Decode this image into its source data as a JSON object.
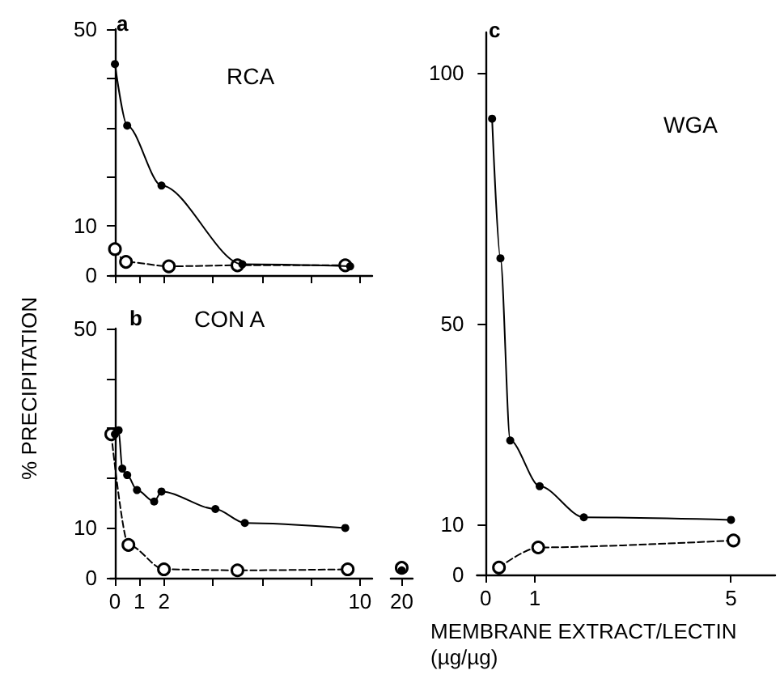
{
  "chart_data": [
    {
      "type": "line",
      "annotations": [
        "a",
        "RCA"
      ],
      "xlim": [
        -0.2,
        10.5
      ],
      "xticks": [
        0,
        1,
        2,
        4,
        6,
        8,
        10
      ],
      "ylim": [
        0,
        50
      ],
      "yticks": [
        0,
        10,
        {
          "value": 20,
          "label": null
        },
        {
          "value": 30,
          "label": null
        },
        {
          "value": 40,
          "label": null
        },
        50
      ],
      "tick_labels": "y",
      "series": [
        {
          "color": "#000000",
          "marker": "circle",
          "line_style": "solid",
          "x": [
            0,
            0.5,
            1.9,
            5.2,
            9.6
          ],
          "values": [
            42.9,
            30.4,
            18.2,
            2.2,
            1.8
          ]
        },
        {
          "color": "#000000",
          "marker": "circle",
          "line_style": "dashed",
          "x": [
            0,
            0.45,
            2.2,
            5,
            9.4
          ],
          "values": [
            5.3,
            2.7,
            1.8,
            2,
            2
          ]
        }
      ]
    },
    {
      "type": "line",
      "annotations": [
        "b",
        "CON A"
      ],
      "ylabel": "% PRECIPITATION",
      "xlim": [
        -0.2,
        10.5
      ],
      "xticks": [
        0,
        1,
        2,
        {
          "value": 4,
          "label": null
        },
        {
          "value": 6,
          "label": null
        },
        {
          "value": 8,
          "label": null
        },
        10
      ],
      "ylim": [
        0,
        50
      ],
      "yticks": [
        0,
        10,
        {
          "value": 20,
          "label": null
        },
        {
          "value": 30,
          "label": null
        },
        {
          "value": 40,
          "label": null
        },
        50
      ],
      "series": [
        {
          "color": "#000000",
          "marker": "circle",
          "line_style": "solid",
          "x": [
            0,
            0.15,
            0.3,
            0.5,
            0.9,
            1.6,
            1.9,
            4.1,
            5.3,
            9.4
          ],
          "values": [
            28.8,
            29.6,
            21.9,
            20.6,
            17.6,
            15.3,
            17.3,
            13.8,
            11,
            10
          ]
        },
        {
          "color": "#000000",
          "marker": "circle",
          "line_style": "dashed",
          "x": [
            -0.15,
            0.55,
            2,
            5,
            9.5
          ],
          "values": [
            28.8,
            6.6,
            1.7,
            1.5,
            1.7
          ]
        }
      ]
    },
    {
      "type": "line",
      "categories": [
        "20"
      ],
      "ylim": [
        0,
        50
      ],
      "tick_labels": "x",
      "series": [
        {
          "color": "#000000",
          "marker": "circle",
          "line_style": "solid",
          "values": [
            1.5
          ]
        },
        {
          "color": "#000000",
          "marker": "circle",
          "line_style": "dashed",
          "values": [
            2
          ]
        }
      ]
    },
    {
      "type": "line",
      "annotations": [
        "c",
        "WGA"
      ],
      "xlabel": "MEMBRANE EXTRACT/LECTIN (µg/µg)",
      "xlim": [
        -0.18,
        5.9
      ],
      "xticks": [
        0,
        1,
        5
      ],
      "ylim": [
        0,
        108
      ],
      "yticks": [
        0,
        10,
        50,
        100
      ],
      "series": [
        {
          "color": "#000000",
          "marker": "circle",
          "line_style": "solid",
          "x": [
            0.13,
            0.3,
            0.5,
            1.1,
            2,
            5
          ],
          "values": [
            90.8,
            63,
            26.7,
            17.6,
            11.4,
            10.9
          ]
        },
        {
          "color": "#000000",
          "marker": "circle",
          "line_style": "dashed",
          "x": [
            0.27,
            1.07,
            5.05
          ],
          "values": [
            1.4,
            5.4,
            6.8
          ]
        }
      ]
    }
  ]
}
